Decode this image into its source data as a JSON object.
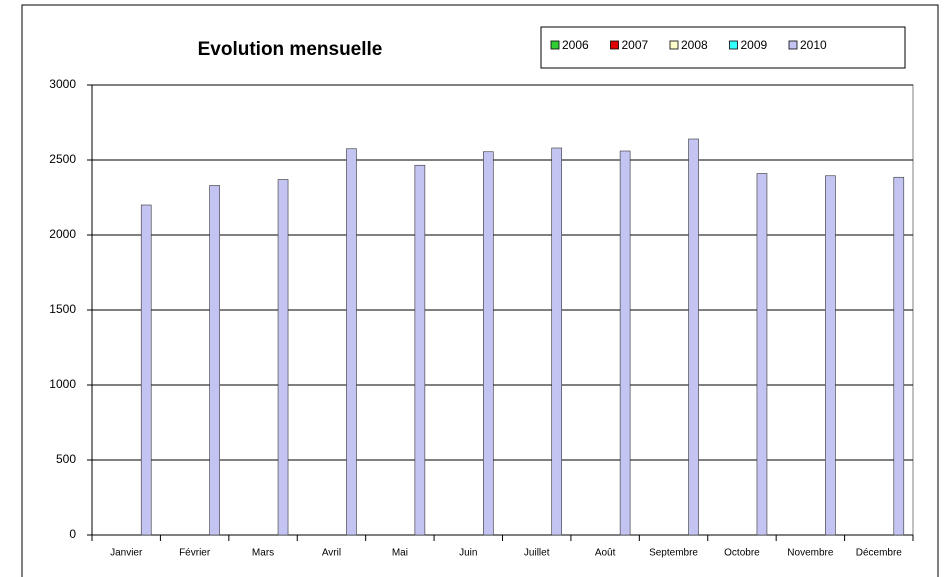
{
  "chart_data": {
    "type": "bar",
    "title": "Evolution mensuelle",
    "categories": [
      "Janvier",
      "Février",
      "Mars",
      "Avril",
      "Mai",
      "Juin",
      "Juillet",
      "Août",
      "Septembre",
      "Octobre",
      "Novembre",
      "Décembre"
    ],
    "series": [
      {
        "name": "2006",
        "color": "#33cc33",
        "values": [
          null,
          null,
          null,
          null,
          null,
          null,
          null,
          null,
          null,
          null,
          null,
          null
        ]
      },
      {
        "name": "2007",
        "color": "#e00000",
        "values": [
          null,
          null,
          null,
          null,
          null,
          null,
          null,
          null,
          null,
          null,
          null,
          null
        ]
      },
      {
        "name": "2008",
        "color": "#ffffcc",
        "values": [
          null,
          null,
          null,
          null,
          null,
          null,
          null,
          null,
          null,
          null,
          null,
          null
        ]
      },
      {
        "name": "2009",
        "color": "#33ffff",
        "values": [
          null,
          null,
          null,
          null,
          null,
          null,
          null,
          null,
          null,
          null,
          null,
          null
        ]
      },
      {
        "name": "2010",
        "color": "#c4c4f2",
        "values": [
          2200,
          2330,
          2370,
          2575,
          2465,
          2555,
          2580,
          2560,
          2640,
          2410,
          2395,
          2385
        ]
      }
    ],
    "ylim": [
      0,
      3000
    ],
    "yticks": [
      0,
      500,
      1000,
      1500,
      2000,
      2500,
      3000
    ],
    "grid": true,
    "legend": "top-right"
  }
}
